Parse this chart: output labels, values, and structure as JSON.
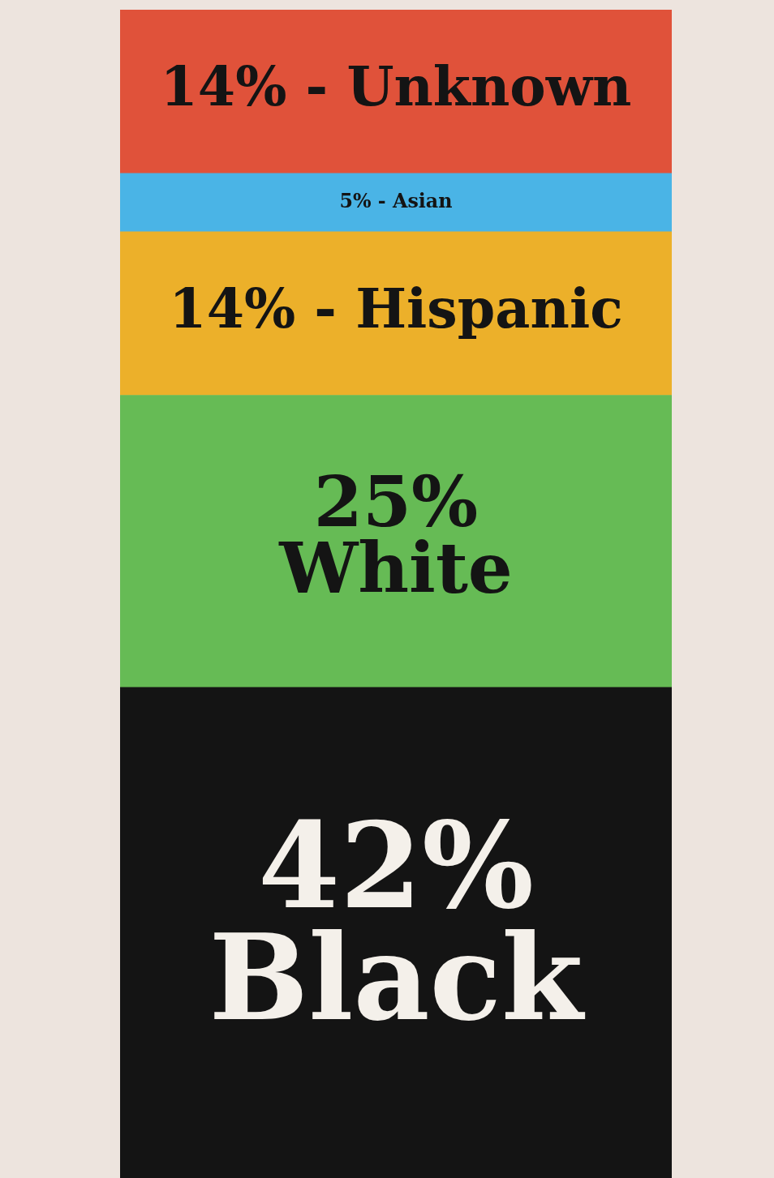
{
  "chart_data": {
    "type": "bar",
    "stacked": true,
    "categories": [
      null
    ],
    "ylim": [
      0,
      100
    ],
    "series": [
      {
        "color": "#141414",
        "values": [
          42
        ],
        "value_labels": [
          "42% Black"
        ]
      },
      {
        "color": "#66bb55",
        "values": [
          25
        ],
        "value_labels": [
          "25% White"
        ]
      },
      {
        "color": "#ecb02a",
        "values": [
          14
        ],
        "value_labels": [
          "14% - Hispanic"
        ]
      },
      {
        "color": "#4ab4e6",
        "values": [
          5
        ],
        "value_labels": [
          "5% - Asian"
        ]
      },
      {
        "color": "#e0523a",
        "values": [
          14
        ],
        "value_labels": [
          "14% - Unknown"
        ]
      }
    ]
  }
}
